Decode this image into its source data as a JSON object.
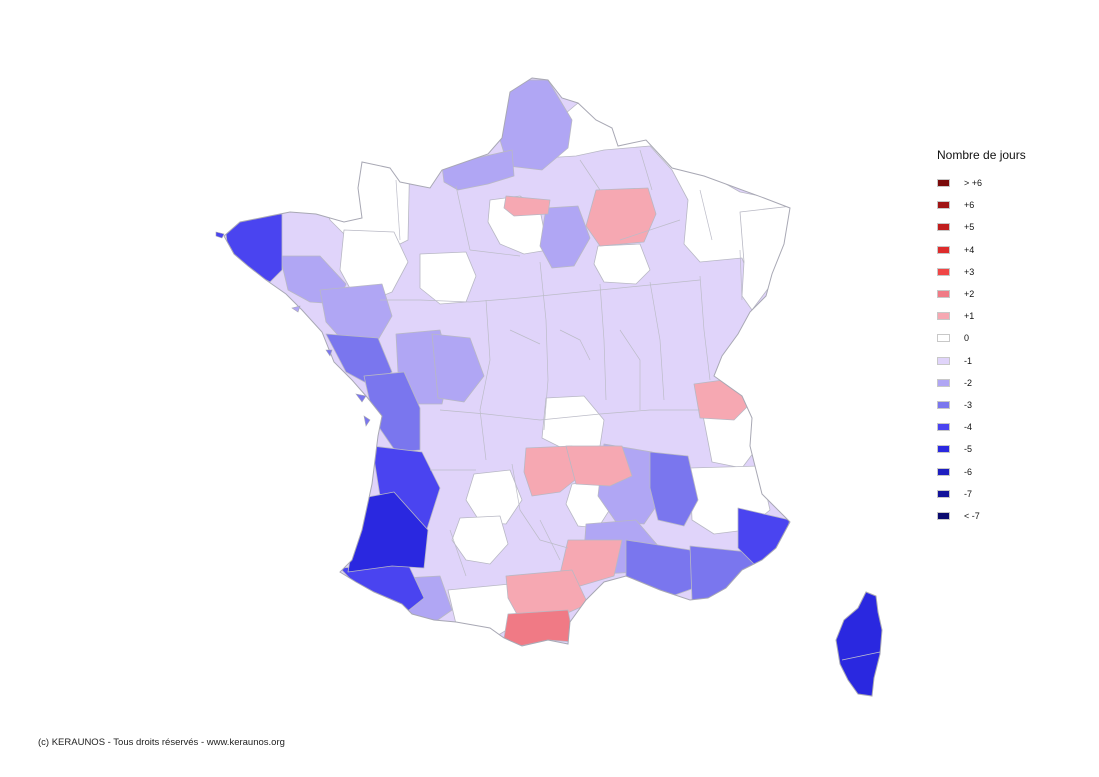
{
  "legend": {
    "title": "Nombre de jours",
    "items": [
      {
        "label": "> +6",
        "color": "#7a0a0a"
      },
      {
        "label": "+6",
        "color": "#a01414"
      },
      {
        "label": "+5",
        "color": "#c01e1e"
      },
      {
        "label": "+4",
        "color": "#dd2c2c"
      },
      {
        "label": "+3",
        "color": "#f04646"
      },
      {
        "label": "+2",
        "color": "#f07a85"
      },
      {
        "label": "+1",
        "color": "#f6a8b2"
      },
      {
        "label": "0",
        "color": "#ffffff"
      },
      {
        "label": "-1",
        "color": "#e0d4fa"
      },
      {
        "label": "-2",
        "color": "#b0a6f4"
      },
      {
        "label": "-3",
        "color": "#7a76ee"
      },
      {
        "label": "-4",
        "color": "#4a44f0"
      },
      {
        "label": "-5",
        "color": "#2a28e0"
      },
      {
        "label": "-6",
        "color": "#1e1ec0"
      },
      {
        "label": "-7",
        "color": "#12129a"
      },
      {
        "label": "< -7",
        "color": "#0a0a6e"
      }
    ]
  },
  "credit": "(c) KERAUNOS - Tous droits réservés - www.keraunos.org"
}
